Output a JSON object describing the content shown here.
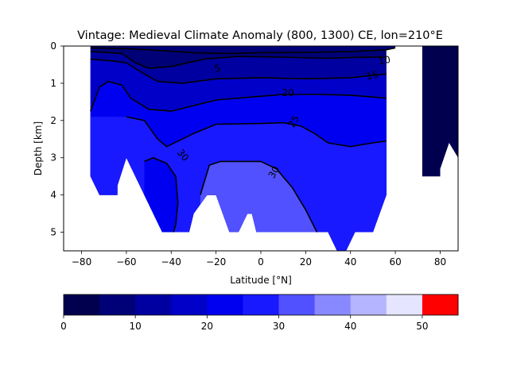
{
  "chart_data": {
    "type": "heatmap",
    "title": "Vintage: Medieval Climate Anomaly (800, 1300) CE, lon=210°E",
    "xlabel": "Latitude [°N]",
    "ylabel": "Depth [km]",
    "xlim": [
      -88,
      88
    ],
    "ylim": [
      5.5,
      0
    ],
    "x_ticks": [
      -80,
      -60,
      -40,
      -20,
      0,
      20,
      40,
      60,
      80
    ],
    "y_ticks": [
      0,
      1,
      2,
      3,
      4,
      5
    ],
    "colorbar": {
      "levels": [
        0,
        5,
        10,
        15,
        20,
        25,
        30,
        35,
        40,
        45,
        50,
        55
      ],
      "ticks": [
        0,
        10,
        20,
        30,
        40,
        50
      ],
      "colors": [
        "#00004f",
        "#000077",
        "#0000a0",
        "#0000c8",
        "#0000f0",
        "#1919ff",
        "#5151ff",
        "#8989ff",
        "#b4b4ff",
        "#e5e5ff",
        "#ff0000"
      ]
    },
    "contour_labels": [
      "5",
      "10",
      "15",
      "20",
      "25",
      "30",
      "30",
      "30"
    ],
    "contours": [
      {
        "level": 5,
        "points": [
          [
            -76,
            0.05
          ],
          [
            -60,
            0.07
          ],
          [
            -45,
            0.12
          ],
          [
            -30,
            0.18
          ],
          [
            -15,
            0.2
          ],
          [
            0,
            0.18
          ],
          [
            20,
            0.17
          ],
          [
            40,
            0.15
          ],
          [
            56,
            0.1
          ],
          [
            60,
            0.05
          ]
        ]
      },
      {
        "level": 10,
        "points": [
          [
            -76,
            0.15
          ],
          [
            -62,
            0.2
          ],
          [
            -56,
            0.45
          ],
          [
            -50,
            0.6
          ],
          [
            -40,
            0.55
          ],
          [
            -25,
            0.35
          ],
          [
            -10,
            0.28
          ],
          [
            10,
            0.3
          ],
          [
            30,
            0.33
          ],
          [
            45,
            0.3
          ],
          [
            56,
            0.3
          ]
        ]
      },
      {
        "level": 15,
        "points": [
          [
            -76,
            0.35
          ],
          [
            -66,
            0.4
          ],
          [
            -60,
            0.45
          ],
          [
            -52,
            0.75
          ],
          [
            -46,
            0.95
          ],
          [
            -35,
            1.0
          ],
          [
            -20,
            0.88
          ],
          [
            0,
            0.85
          ],
          [
            20,
            0.88
          ],
          [
            40,
            0.85
          ],
          [
            56,
            0.75
          ]
        ]
      },
      {
        "level": 20,
        "points": [
          [
            -76,
            1.75
          ],
          [
            -72,
            1.1
          ],
          [
            -68,
            0.95
          ],
          [
            -62,
            1.05
          ],
          [
            -58,
            1.4
          ],
          [
            -50,
            1.7
          ],
          [
            -40,
            1.75
          ],
          [
            -20,
            1.45
          ],
          [
            0,
            1.35
          ],
          [
            10,
            1.3
          ],
          [
            25,
            1.3
          ],
          [
            40,
            1.32
          ],
          [
            56,
            1.4
          ]
        ]
      },
      {
        "level": 25,
        "points": [
          [
            -60,
            1.9
          ],
          [
            -52,
            2.0
          ],
          [
            -46,
            2.5
          ],
          [
            -42,
            2.7
          ],
          [
            -30,
            2.35
          ],
          [
            -20,
            2.1
          ],
          [
            0,
            2.08
          ],
          [
            10,
            2.06
          ],
          [
            18,
            2.15
          ],
          [
            24,
            2.35
          ],
          [
            30,
            2.6
          ],
          [
            40,
            2.7
          ],
          [
            50,
            2.6
          ],
          [
            56,
            2.55
          ]
        ]
      },
      {
        "level": 30,
        "points": [
          [
            -52,
            3.1
          ],
          [
            -48,
            3.0
          ],
          [
            -42,
            3.15
          ],
          [
            -38,
            3.5
          ],
          [
            -37,
            4.2
          ],
          [
            -38,
            4.8
          ],
          [
            -39,
            5.0
          ]
        ]
      },
      {
        "level": 30,
        "points": [
          [
            -27,
            4.0
          ],
          [
            -23,
            3.2
          ],
          [
            -18,
            3.1
          ],
          [
            -10,
            3.1
          ],
          [
            0,
            3.1
          ],
          [
            7,
            3.3
          ],
          [
            14,
            3.8
          ],
          [
            20,
            4.4
          ],
          [
            25,
            5.0
          ]
        ]
      }
    ]
  }
}
